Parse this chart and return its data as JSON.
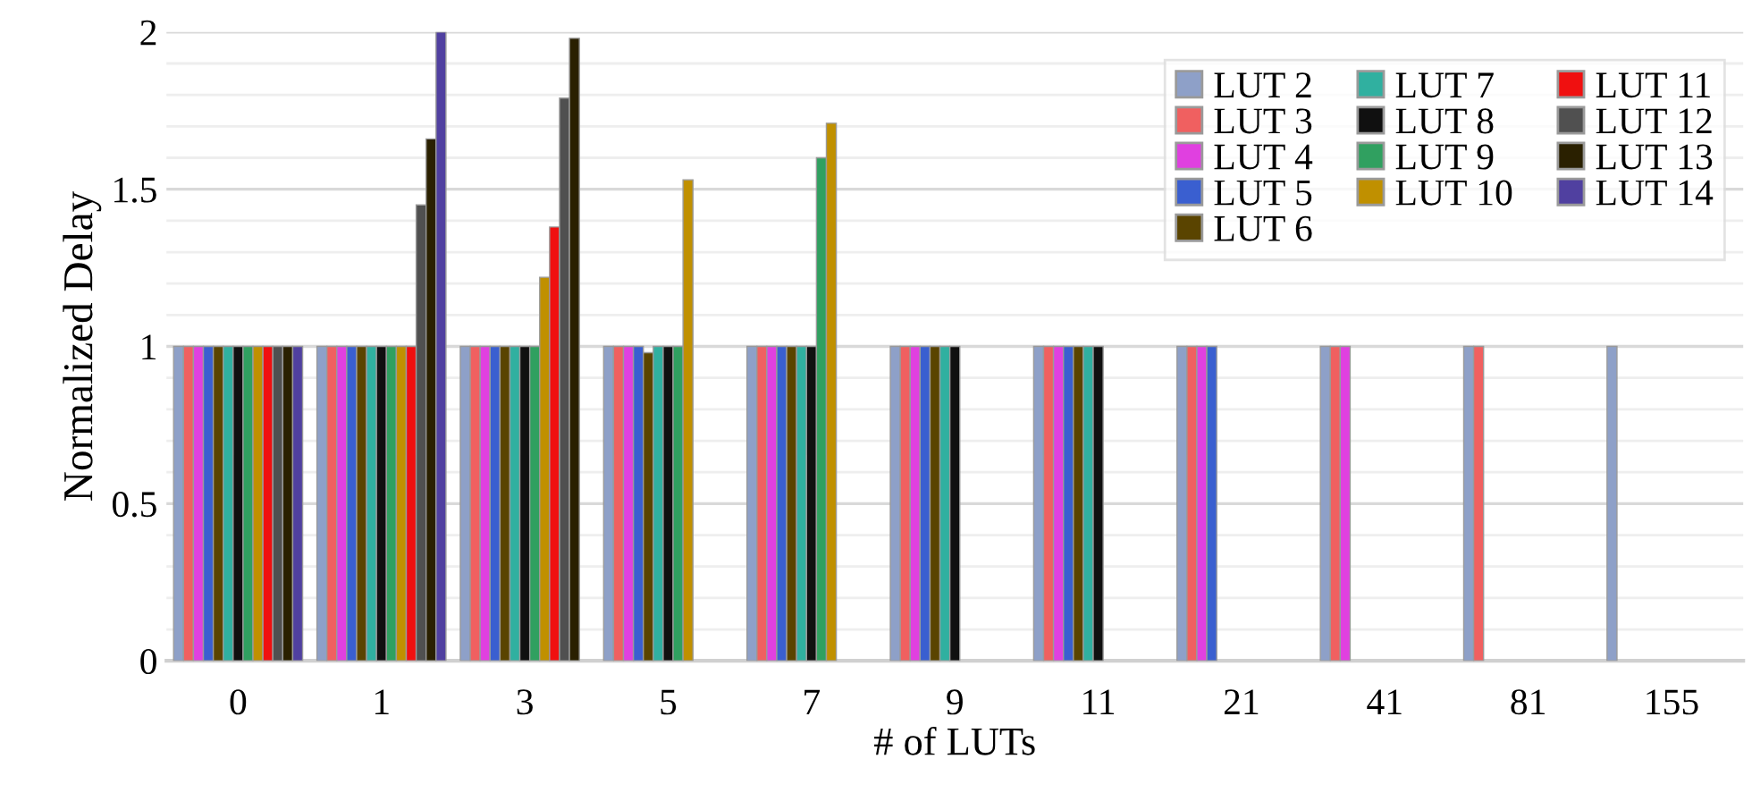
{
  "chart_data": {
    "type": "bar",
    "xlabel": "# of LUTs",
    "ylabel": "Normalized Delay",
    "categories": [
      "0",
      "1",
      "3",
      "5",
      "7",
      "9",
      "11",
      "21",
      "41",
      "81",
      "155"
    ],
    "ylim": [
      0,
      2
    ],
    "yticks": [
      0,
      {
        "value": 0.1,
        "label": null
      },
      {
        "value": 0.2,
        "label": null
      },
      {
        "value": 0.3,
        "label": null
      },
      {
        "value": 0.4,
        "label": null
      },
      0.5,
      {
        "value": 0.6,
        "label": null
      },
      {
        "value": 0.7,
        "label": null
      },
      {
        "value": 0.8,
        "label": null
      },
      {
        "value": 0.9,
        "label": null
      },
      1,
      {
        "value": 1.1,
        "label": null
      },
      {
        "value": 1.2,
        "label": null
      },
      {
        "value": 1.3,
        "label": null
      },
      {
        "value": 1.4,
        "label": null
      },
      1.5,
      {
        "value": 1.6,
        "label": null
      },
      {
        "value": 1.7,
        "label": null
      },
      {
        "value": 1.8,
        "label": null
      },
      {
        "value": 1.9,
        "label": null
      },
      2
    ],
    "grid": "y",
    "legend": "top right",
    "series": [
      {
        "name": "LUT 2",
        "color": "#8ea0c8",
        "values": [
          1,
          1,
          1,
          1,
          1,
          1,
          1,
          1,
          1,
          1,
          1
        ]
      },
      {
        "name": "LUT 3",
        "color": "#f06060",
        "values": [
          1,
          1,
          1,
          1,
          1,
          1,
          1,
          1,
          1,
          1,
          null
        ]
      },
      {
        "name": "LUT 4",
        "color": "#e040e0",
        "values": [
          1,
          1,
          1,
          1,
          1,
          1,
          1,
          1,
          1,
          null,
          null
        ]
      },
      {
        "name": "LUT 5",
        "color": "#3a5fd0",
        "values": [
          1,
          1,
          1,
          1,
          1,
          1,
          1,
          1,
          null,
          null,
          null
        ]
      },
      {
        "name": "LUT 6",
        "color": "#5a4400",
        "values": [
          1,
          1,
          1,
          0.98,
          1,
          1,
          1,
          null,
          null,
          null,
          null
        ]
      },
      {
        "name": "LUT 7",
        "color": "#30b0a0",
        "values": [
          1,
          1,
          1,
          1,
          1,
          1,
          1,
          null,
          null,
          null,
          null
        ]
      },
      {
        "name": "LUT 8",
        "color": "#101010",
        "values": [
          1,
          1,
          1,
          1,
          1,
          1,
          1,
          null,
          null,
          null,
          null
        ]
      },
      {
        "name": "LUT 9",
        "color": "#30a060",
        "values": [
          1,
          1,
          1,
          1,
          1.6,
          null,
          null,
          null,
          null,
          null,
          null
        ]
      },
      {
        "name": "LUT 10",
        "color": "#c09000",
        "values": [
          1,
          1,
          1.22,
          1.53,
          1.71,
          null,
          null,
          null,
          null,
          null,
          null
        ]
      },
      {
        "name": "LUT 11",
        "color": "#f01010",
        "values": [
          1,
          1,
          1.38,
          null,
          null,
          null,
          null,
          null,
          null,
          null,
          null
        ]
      },
      {
        "name": "LUT 12",
        "color": "#505050",
        "values": [
          1,
          1.45,
          1.79,
          null,
          null,
          null,
          null,
          null,
          null,
          null,
          null
        ]
      },
      {
        "name": "LUT 13",
        "color": "#2a2000",
        "values": [
          1,
          1.66,
          1.98,
          null,
          null,
          null,
          null,
          null,
          null,
          null,
          null
        ]
      },
      {
        "name": "LUT 14",
        "color": "#5040a0",
        "values": [
          1,
          2,
          null,
          null,
          null,
          null,
          null,
          null,
          null,
          null,
          null
        ]
      }
    ]
  }
}
